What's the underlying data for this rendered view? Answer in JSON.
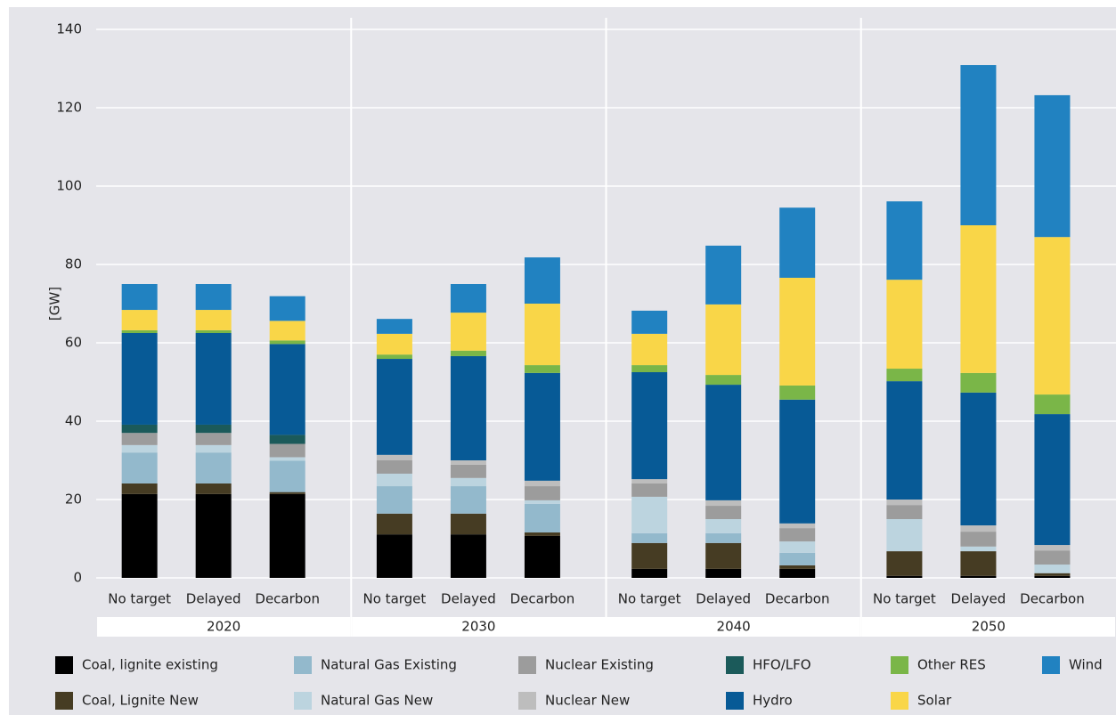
{
  "chart_data": {
    "type": "stacked_bar",
    "y_label": "[GW]",
    "groups": [
      "2020",
      "2030",
      "2040",
      "2050"
    ],
    "categories": [
      "No target",
      "Delayed",
      "Decarbon",
      "No target",
      "Delayed",
      "Decarbon",
      "No target",
      "Delayed",
      "Decarbon",
      "No target",
      "Delayed",
      "Decarbon"
    ],
    "ylim": [
      0,
      140
    ],
    "yticks": [
      0,
      20,
      40,
      60,
      80,
      100,
      120,
      140
    ],
    "grid": true,
    "series": [
      {
        "name": "Coal, lignite existing",
        "color": "#000000",
        "values": [
          21.4,
          21.4,
          21.4,
          11.1,
          11.1,
          10.7,
          2.3,
          2.3,
          2.3,
          0.5,
          0.5,
          0.5
        ]
      },
      {
        "name": "Coal, Lignite New",
        "color": "#463c23",
        "values": [
          2.7,
          2.7,
          0.5,
          5.3,
          5.3,
          0.9,
          6.6,
          6.6,
          0.9,
          6.3,
          6.3,
          0.7
        ]
      },
      {
        "name": "Natural Gas Existing",
        "color": "#93b9cc",
        "values": [
          7.9,
          7.9,
          8,
          7,
          7,
          7.3,
          2.5,
          2.5,
          3.2,
          0,
          0,
          0
        ]
      },
      {
        "name": "Natural Gas New",
        "color": "#bcd4df",
        "values": [
          1.9,
          1.9,
          0.9,
          3.2,
          2.1,
          0.9,
          9.3,
          3.6,
          2.9,
          8.2,
          1.2,
          2.2
        ]
      },
      {
        "name": "Nuclear Existing",
        "color": "#9c9c9c",
        "values": [
          3.1,
          3.1,
          3.4,
          3.4,
          3.4,
          3.6,
          3.4,
          3.4,
          3.4,
          3.6,
          3.8,
          3.6
        ]
      },
      {
        "name": "Nuclear New",
        "color": "#bdbdbd",
        "values": [
          0,
          0,
          0,
          1.4,
          1.1,
          1.4,
          1.1,
          1.4,
          1.2,
          1.4,
          1.6,
          1.4
        ]
      },
      {
        "name": "HFO/LFO",
        "color": "#1b5a5a",
        "values": [
          2.1,
          2.1,
          2.3,
          0,
          0,
          0,
          0,
          0,
          0,
          0,
          0,
          0
        ]
      },
      {
        "name": "Hydro",
        "color": "#075a96",
        "values": [
          23.4,
          23.4,
          23.2,
          24.5,
          26.6,
          27.5,
          27.3,
          29.5,
          31.6,
          30.2,
          33.9,
          33.4
        ]
      },
      {
        "name": "Other RES",
        "color": "#7ab648",
        "values": [
          0.7,
          0.7,
          0.9,
          1.1,
          1.4,
          2,
          1.8,
          2.5,
          3.6,
          3.2,
          5,
          5
        ]
      },
      {
        "name": "Solar",
        "color": "#f9d648",
        "values": [
          5.2,
          5.2,
          5,
          5.3,
          9.7,
          15.7,
          8,
          18,
          27.5,
          22.7,
          37.7,
          40.2
        ]
      },
      {
        "name": "Wind",
        "color": "#2182c1",
        "values": [
          6.6,
          6.6,
          6.3,
          3.8,
          7.3,
          11.8,
          5.9,
          15,
          17.9,
          20,
          40.9,
          36.2
        ]
      }
    ]
  }
}
